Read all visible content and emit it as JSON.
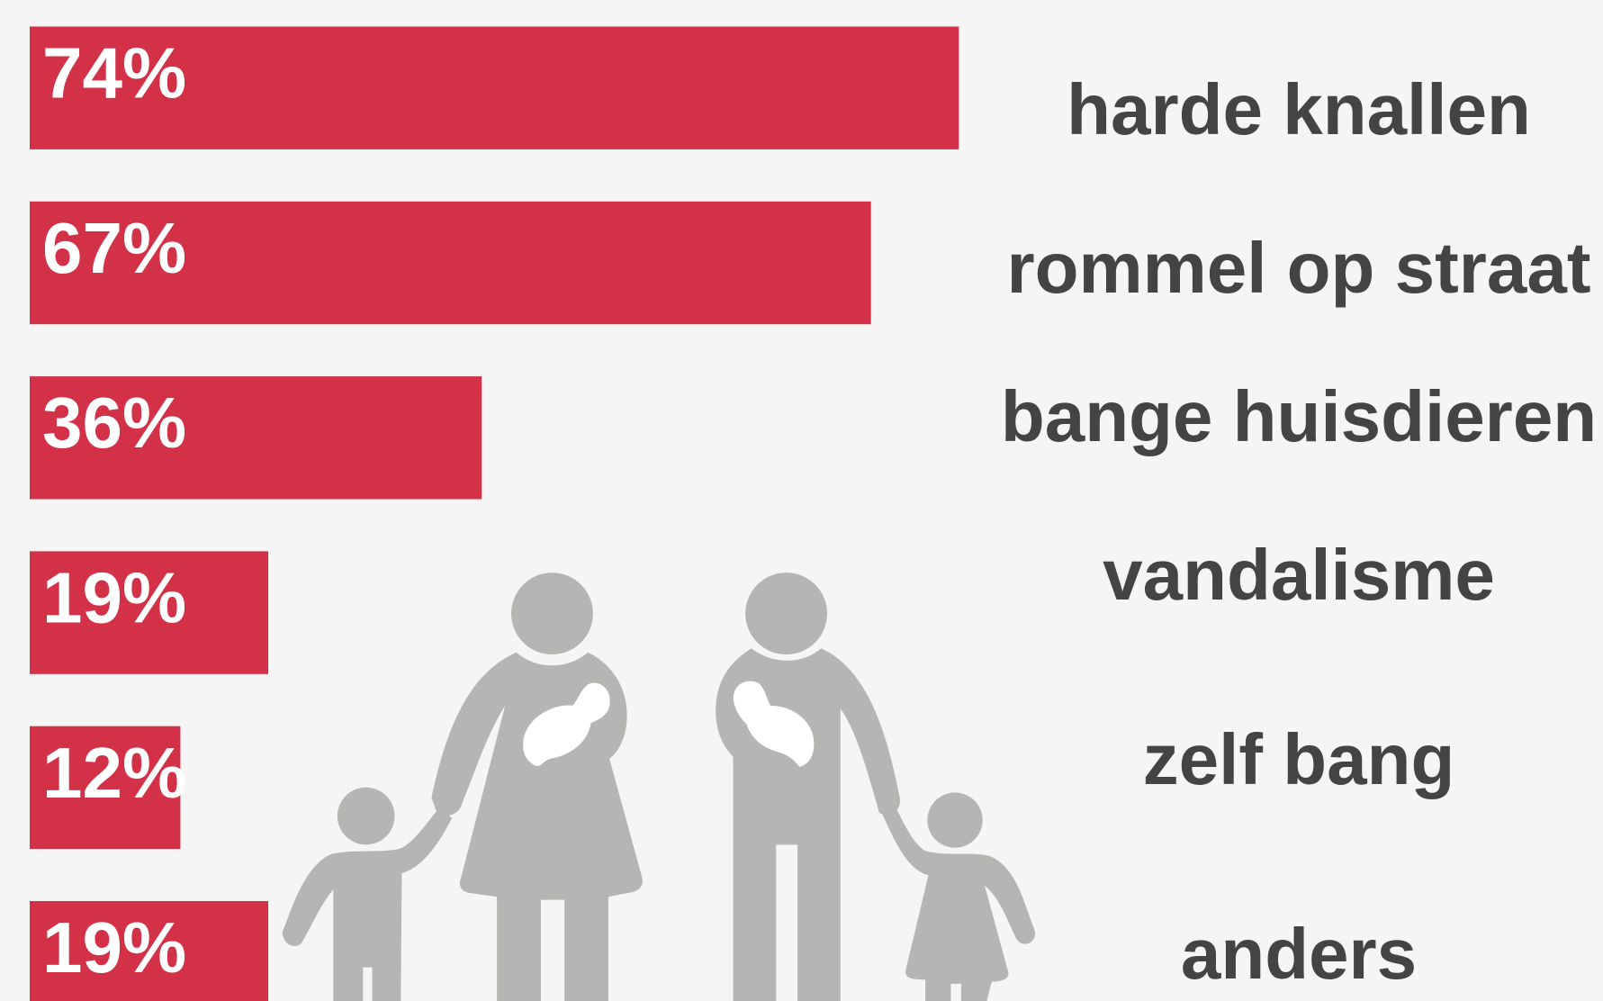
{
  "chart_data": {
    "type": "bar",
    "orientation": "horizontal",
    "color": "#d33147",
    "categories": [
      "harde knallen",
      "rommel op straat",
      "bange huisdieren",
      "vandalisme",
      "zelf bang",
      "anders"
    ],
    "values": [
      74,
      67,
      36,
      19,
      12,
      19
    ],
    "value_labels": [
      "74%",
      "67%",
      "36%",
      "19%",
      "12%",
      "19%"
    ]
  }
}
